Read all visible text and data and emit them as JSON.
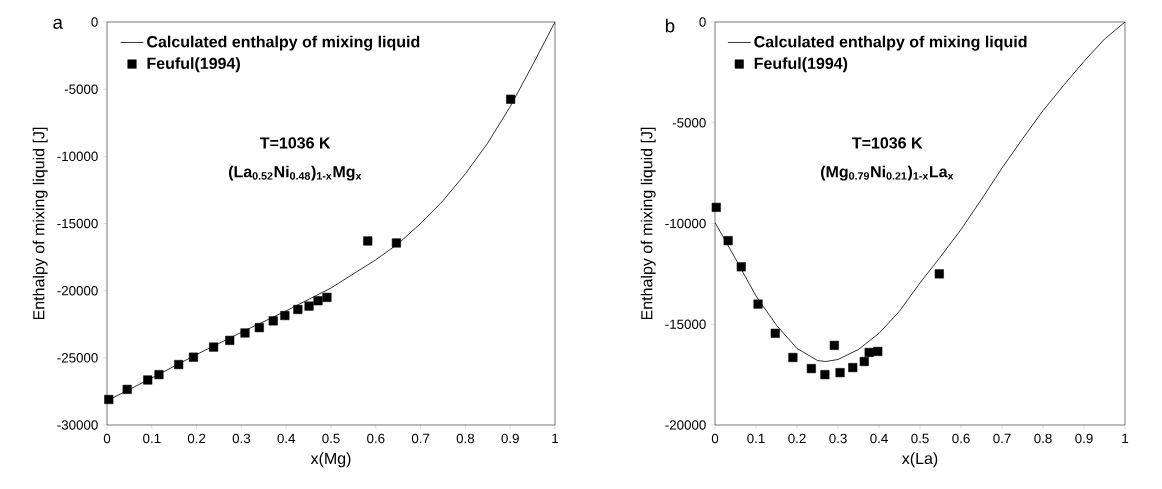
{
  "chart_data": [
    {
      "type": "line",
      "title": "a",
      "xlabel": "x(Mg)",
      "ylabel": "Enthalpy of mixing liquid [J]",
      "annotations": [
        "T=1036 K",
        "(La$_{0.52}$Ni$_{0.48}$)$_{1-x}$Mg$_{x}$"
      ],
      "series": [
        {
          "name": "Calculated enthalpy of mixing liquid",
          "color": "#000000",
          "marker": "none",
          "x": [
            0,
            0.1,
            0.2,
            0.3,
            0.4,
            0.5,
            0.6,
            0.65,
            0.7,
            0.75,
            0.8,
            0.85,
            0.9,
            0.95,
            1.0
          ],
          "values": [
            -28200,
            -26500,
            -24750,
            -23100,
            -21500,
            -19800,
            -17700,
            -16500,
            -15000,
            -13300,
            -11300,
            -9000,
            -6300,
            -3200,
            0
          ]
        },
        {
          "name": "Feuful(1994)",
          "type": "scatter",
          "color": "#000000",
          "marker": "square",
          "x": [
            0.004,
            0.045,
            0.091,
            0.116,
            0.16,
            0.193,
            0.238,
            0.274,
            0.308,
            0.34,
            0.371,
            0.397,
            0.426,
            0.451,
            0.471,
            0.491,
            0.582,
            0.646,
            0.901
          ],
          "values": [
            -28100,
            -27350,
            -26650,
            -26250,
            -25500,
            -24950,
            -24200,
            -23700,
            -23150,
            -22750,
            -22250,
            -21850,
            -21400,
            -21150,
            -20750,
            -20500,
            -16300,
            -16450,
            -5750
          ]
        }
      ],
      "xlim": [
        0,
        1
      ],
      "ylim": [
        -30000,
        0
      ],
      "xticks": [
        0,
        0.1,
        0.2,
        0.3,
        0.4,
        0.5,
        0.6,
        0.7,
        0.8,
        0.9,
        1
      ],
      "yticks": [
        -30000,
        -25000,
        -20000,
        -15000,
        -10000,
        -5000,
        0
      ],
      "legend": "top left",
      "grid": false
    },
    {
      "type": "line",
      "title": "b",
      "xlabel": "x(La)",
      "ylabel": "Enthalpy of mixing liquid [J]",
      "annotations": [
        "T=1036 K",
        "(Mg$_{0.79}$Ni$_{0.21}$)$_{1-x}$La$_{x}$"
      ],
      "series": [
        {
          "name": "Calculated enthalpy of mixing liquid",
          "color": "#000000",
          "marker": "none",
          "x": [
            0,
            0.05,
            0.1,
            0.15,
            0.2,
            0.25,
            0.27,
            0.3,
            0.35,
            0.4,
            0.45,
            0.5,
            0.55,
            0.6,
            0.65,
            0.7,
            0.75,
            0.8,
            0.85,
            0.9,
            0.95,
            1.0
          ],
          "values": [
            -9950,
            -11750,
            -13600,
            -15050,
            -16200,
            -16800,
            -16850,
            -16750,
            -16250,
            -15450,
            -14350,
            -12950,
            -11650,
            -10300,
            -8800,
            -7250,
            -5800,
            -4400,
            -3150,
            -1950,
            -850,
            0
          ]
        },
        {
          "name": "Feuful(1994)",
          "type": "scatter",
          "color": "#000000",
          "marker": "square",
          "x": [
            0.003,
            0.032,
            0.064,
            0.105,
            0.147,
            0.19,
            0.235,
            0.268,
            0.291,
            0.305,
            0.336,
            0.364,
            0.376,
            0.397,
            0.547
          ],
          "values": [
            -9200,
            -10850,
            -12150,
            -14000,
            -15450,
            -16650,
            -17200,
            -17500,
            -16050,
            -17400,
            -17150,
            -16850,
            -16400,
            -16350,
            -12500
          ]
        }
      ],
      "xlim": [
        0,
        1
      ],
      "ylim": [
        -20000,
        0
      ],
      "xticks": [
        0,
        0.1,
        0.2,
        0.3,
        0.4,
        0.5,
        0.6,
        0.7,
        0.8,
        0.9,
        1
      ],
      "yticks": [
        -20000,
        -15000,
        -10000,
        -5000,
        0
      ],
      "legend": "top left",
      "grid": false
    }
  ]
}
